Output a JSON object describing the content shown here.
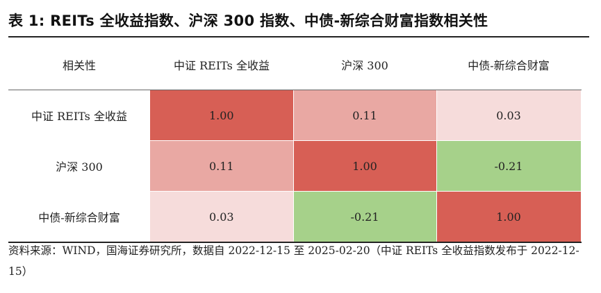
{
  "title": "表 1:  REITs 全收益指数、沪深 300 指数、中债-新综合财富指数相关性",
  "table": {
    "corner": "相关性",
    "columns": [
      "中证 REITs 全收益",
      "沪深 300",
      "中债-新综合财富"
    ],
    "rows": [
      {
        "label": "中证 REITs 全收益",
        "cells": [
          "1.00",
          "0.11",
          "0.03"
        ]
      },
      {
        "label": "沪深 300",
        "cells": [
          "0.11",
          "1.00",
          "-0.21"
        ]
      },
      {
        "label": "中债-新综合财富",
        "cells": [
          "0.03",
          "-0.21",
          "1.00"
        ]
      }
    ]
  },
  "colors": {
    "strong_positive": "#d75f55",
    "mid_positive": "#e9a8a3",
    "weak_positive": "#f6dcdb",
    "negative": "#a6d18a"
  },
  "cell_colors": [
    [
      "strong_positive",
      "mid_positive",
      "weak_positive"
    ],
    [
      "mid_positive",
      "strong_positive",
      "negative"
    ],
    [
      "weak_positive",
      "negative",
      "strong_positive"
    ]
  ],
  "source": "资料来源：WIND，国海证券研究所，数据自 2022-12-15 至 2025-02-20（中证 REITs 全收益指数发布于 2022-12-15）"
}
